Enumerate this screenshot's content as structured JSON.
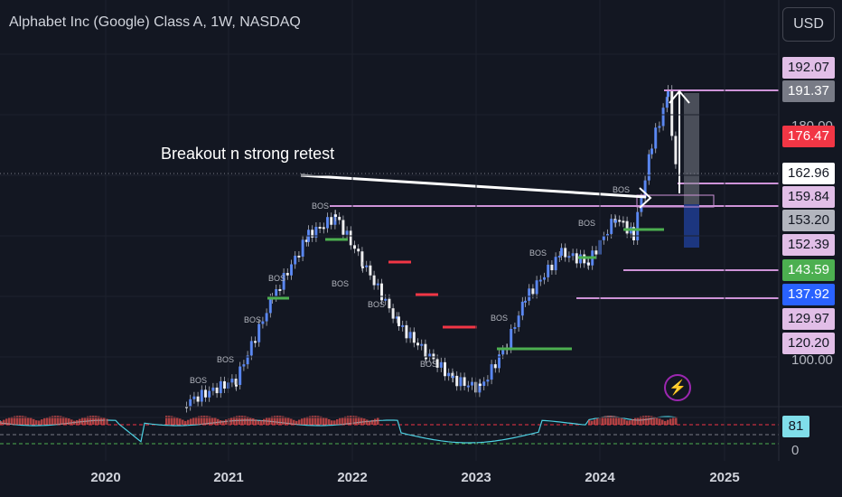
{
  "header": {
    "title": "Alphabet Inc (Google) Class A, 1W, NASDAQ"
  },
  "toolbar": {
    "currency_label": "USD"
  },
  "annotation": {
    "text": "Breakout n strong retest"
  },
  "structure_label": "BOS",
  "price_labels": [
    {
      "value": "192.07",
      "y": 75,
      "bg": "#e1bee7",
      "fg": "#131722"
    },
    {
      "value": "191.37",
      "y": 101,
      "bg": "#787b86",
      "fg": "#ffffff"
    },
    {
      "value": "176.47",
      "y": 151,
      "bg": "#f23645",
      "fg": "#ffffff"
    },
    {
      "value": "162.96",
      "y": 192,
      "bg": "#ffffff",
      "fg": "#131722"
    },
    {
      "value": "159.84",
      "y": 218,
      "bg": "#e1bee7",
      "fg": "#131722"
    },
    {
      "value": "153.20",
      "y": 244,
      "bg": "#b2b5be",
      "fg": "#131722"
    },
    {
      "value": "152.39",
      "y": 271,
      "bg": "#e1bee7",
      "fg": "#131722"
    },
    {
      "value": "143.59",
      "y": 299,
      "bg": "#4caf50",
      "fg": "#ffffff"
    },
    {
      "value": "137.92",
      "y": 326,
      "bg": "#2962ff",
      "fg": "#ffffff"
    },
    {
      "value": "129.97",
      "y": 353,
      "bg": "#e1bee7",
      "fg": "#131722"
    },
    {
      "value": "120.20",
      "y": 380,
      "bg": "#e1bee7",
      "fg": "#131722"
    }
  ],
  "axis_labels": {
    "p100": "100.00",
    "p180": "180.00",
    "osc_value": "81",
    "osc_zero": "0"
  },
  "x_axis": [
    "2020",
    "2021",
    "2022",
    "2023",
    "2024",
    "2025"
  ],
  "colors": {
    "up": "#26a69a",
    "down": "#ef5350",
    "purple": "#ce93d8",
    "green_level": "#4caf50",
    "red_level": "#f23645",
    "arrow": "#ffffff",
    "blue_box": "#1e3a8a"
  },
  "icons": {
    "alert": "lightning-icon"
  }
}
